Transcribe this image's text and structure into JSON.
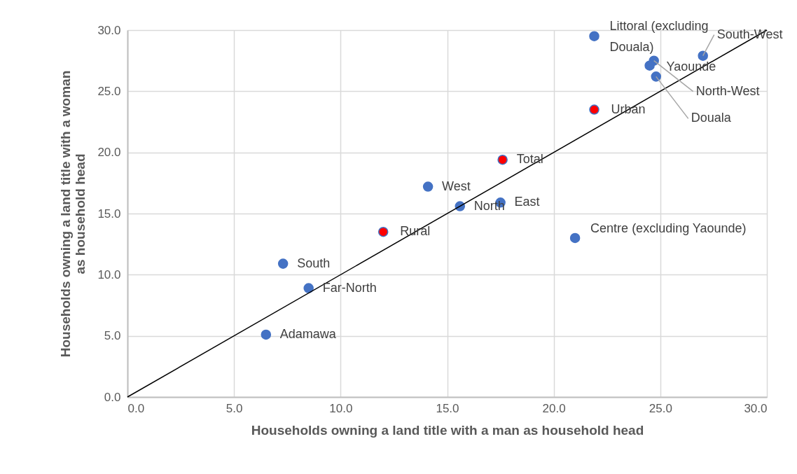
{
  "chart_data": {
    "type": "scatter",
    "xlabel": "Households owning a land title with a man as household head",
    "ylabel": "Households owning a land title with a woman as household head",
    "xlim": [
      0,
      30
    ],
    "ylim": [
      0,
      30
    ],
    "xticks": [
      {
        "value": 0,
        "label": "0.0"
      },
      {
        "value": 5,
        "label": "5.0"
      },
      {
        "value": 10,
        "label": "10.0"
      },
      {
        "value": 15,
        "label": "15.0"
      },
      {
        "value": 20,
        "label": "20.0"
      },
      {
        "value": 25,
        "label": "25.0"
      },
      {
        "value": 30,
        "label": "30.0"
      }
    ],
    "yticks": [
      {
        "value": 0,
        "label": "0.0"
      },
      {
        "value": 5,
        "label": "5.0"
      },
      {
        "value": 10,
        "label": "10.0"
      },
      {
        "value": 15,
        "label": "15.0"
      },
      {
        "value": 20,
        "label": "20.0"
      },
      {
        "value": 25,
        "label": "25.0"
      },
      {
        "value": 30,
        "label": "30.0"
      }
    ],
    "grid": true,
    "marker": "circle",
    "series": [
      {
        "type": "scatter",
        "color": "#4472c4",
        "x": [
          6.5,
          7.3,
          8.5,
          12.0,
          14.1,
          15.6,
          17.5,
          17.6,
          21.0,
          21.9,
          21.9,
          27.0,
          24.7,
          24.5,
          24.8
        ],
        "values": [
          5.1,
          10.9,
          8.9,
          13.5,
          17.2,
          15.6,
          15.9,
          19.4,
          13.0,
          29.5,
          23.5,
          27.9,
          27.5,
          27.1,
          26.2
        ],
        "colors": [
          "#4472c4",
          "#4472c4",
          "#4472c4",
          "#ff0000",
          "#4472c4",
          "#4472c4",
          "#4472c4",
          "#ff0000",
          "#4472c4",
          "#4472c4",
          "#ff0000",
          "#4472c4",
          "#4472c4",
          "#4472c4",
          "#4472c4"
        ]
      },
      {
        "type": "line",
        "color": "#000000",
        "x": [
          0,
          30
        ],
        "values": [
          0,
          30
        ],
        "line_style": "solid",
        "marker": "none"
      }
    ],
    "annotations": [
      {
        "text": "Adamawa",
        "x": 6.5,
        "y": 5.1
      },
      {
        "text": "South",
        "x": 7.3,
        "y": 10.9
      },
      {
        "text": "Far-North",
        "x": 8.5,
        "y": 8.9
      },
      {
        "text": "Rural",
        "x": 12.0,
        "y": 13.5
      },
      {
        "text": "West",
        "x": 14.1,
        "y": 17.2
      },
      {
        "text": "North",
        "x": 15.6,
        "y": 15.6
      },
      {
        "text": "East",
        "x": 17.5,
        "y": 15.9
      },
      {
        "text": "Total",
        "x": 17.6,
        "y": 19.4
      },
      {
        "text": "Centre (excluding Yaounde)",
        "x": 21.0,
        "y": 13.0
      },
      {
        "text": "Littoral (excluding Douala)",
        "x": 21.9,
        "y": 29.5
      },
      {
        "text": "Urban",
        "x": 21.9,
        "y": 23.5
      },
      {
        "text": "South-West",
        "x": 27.0,
        "y": 27.9
      },
      {
        "text": "North-West",
        "x": 24.7,
        "y": 27.5
      },
      {
        "text": "Yaounde",
        "x": 24.5,
        "y": 27.1
      },
      {
        "text": "Douala",
        "x": 24.8,
        "y": 26.2
      }
    ]
  }
}
